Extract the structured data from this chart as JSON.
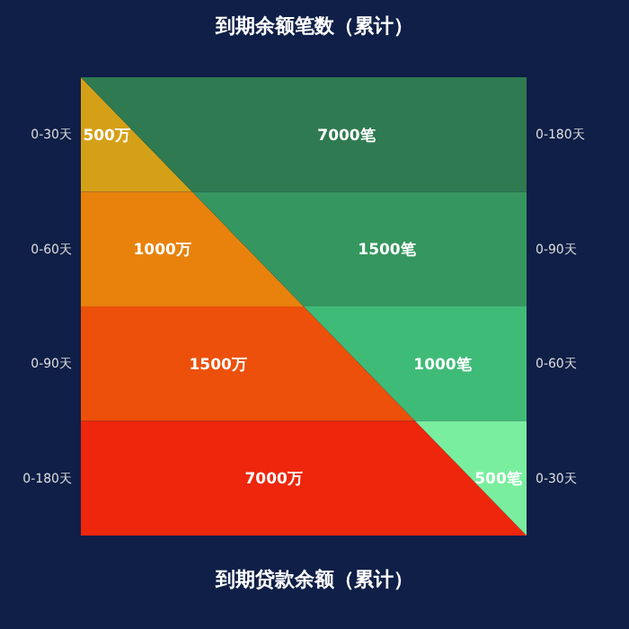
{
  "chart_data": {
    "type": "other",
    "title": "到期余额笔数（累计）",
    "xlabel": "到期贷款余额（累计）",
    "categories": [
      "0-30天",
      "0-60天",
      "0-90天",
      "0-180天"
    ],
    "y2_categories": [
      "0-180天",
      "0-90天",
      "0-60天",
      "0-30天"
    ],
    "series": [
      {
        "values": [
          500,
          1000,
          1500,
          7000
        ],
        "value_labels": [
          "500万",
          "1000万",
          "1500万",
          "7000万"
        ],
        "colors": [
          "#d4a017",
          "#e8820c",
          "#ec500a",
          "#ee260c"
        ]
      },
      {
        "axis": "y2",
        "values": [
          7000,
          1500,
          1000,
          500
        ],
        "value_labels": [
          "7000笔",
          "1500笔",
          "1000笔",
          "500笔"
        ],
        "colors": [
          "#2f7a50",
          "#36965f",
          "#3fbb78",
          "#7aee9f"
        ]
      }
    ]
  }
}
